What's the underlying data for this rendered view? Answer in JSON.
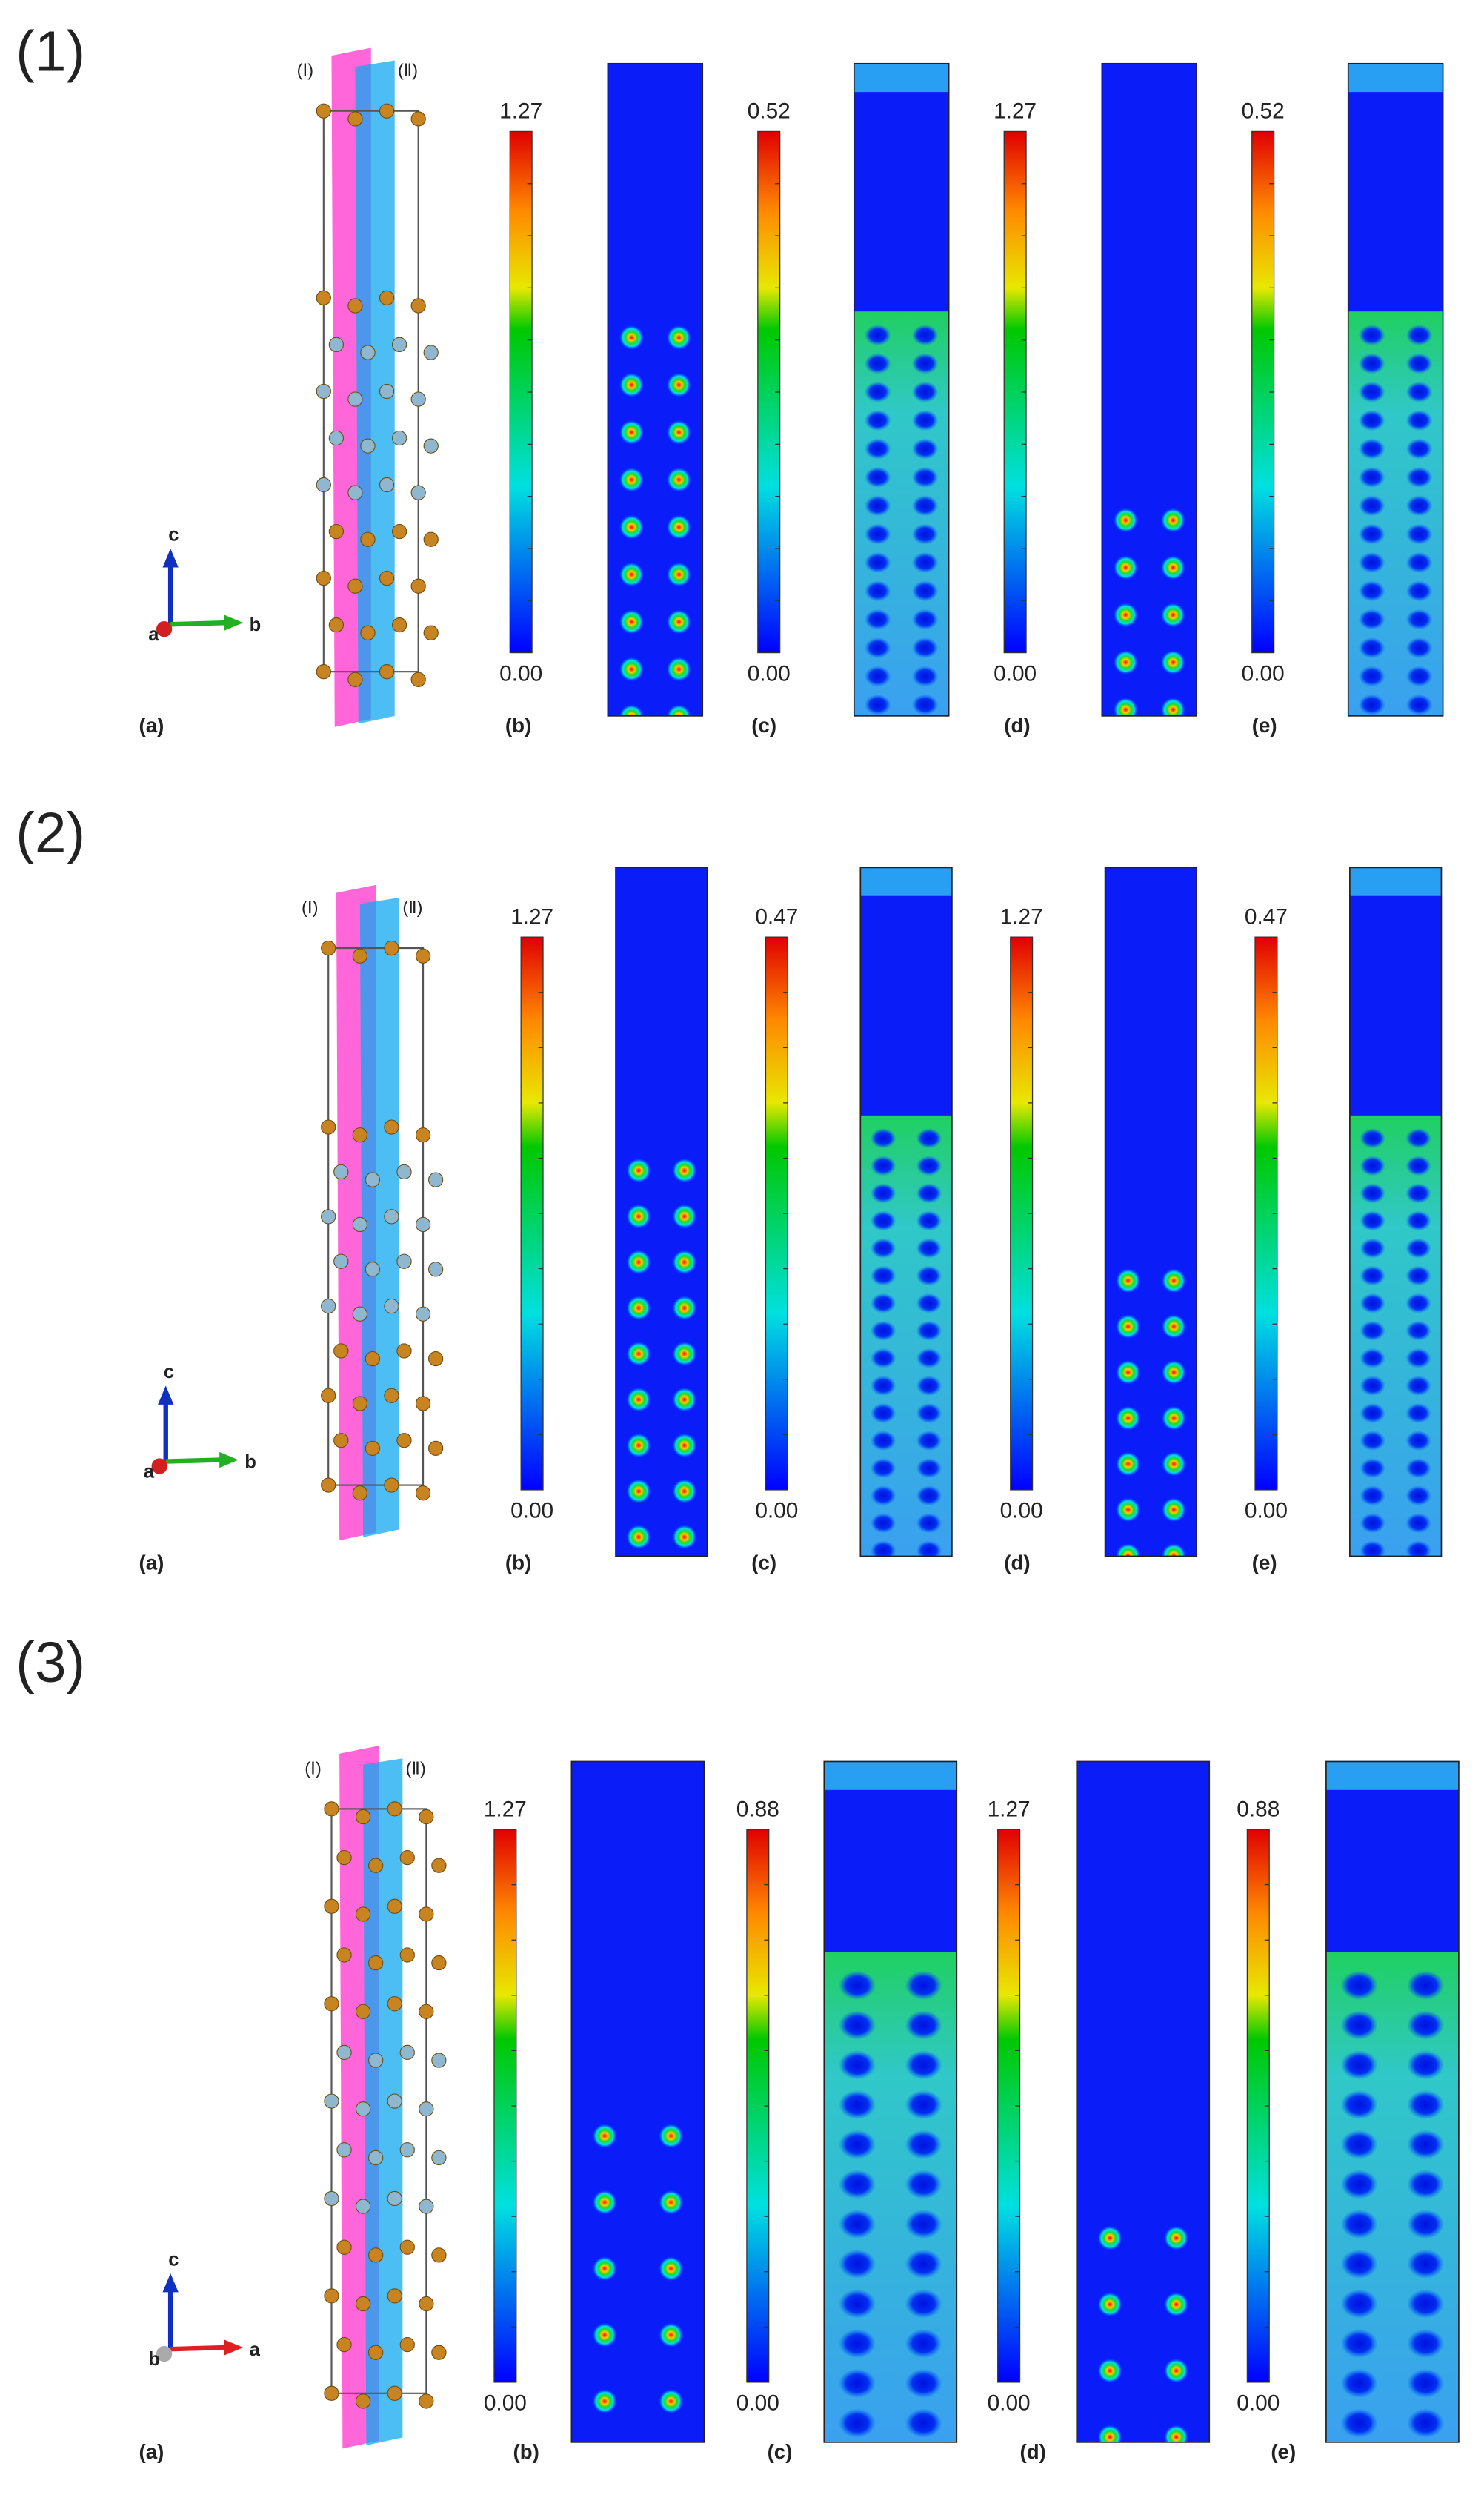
{
  "figure": {
    "rows": [
      {
        "label": "(1)",
        "planes": [
          "(Ⅰ)",
          "(Ⅱ)"
        ],
        "axes": {
          "up": "c",
          "side": "a",
          "right": "b"
        },
        "panel_labels": [
          "(a)",
          "(b)",
          "(c)",
          "(d)",
          "(e)"
        ],
        "colorbars": [
          {
            "max": "1.27",
            "min": "0.00"
          },
          {
            "max": "0.52",
            "min": "0.00"
          },
          {
            "max": "1.27",
            "min": "0.00"
          },
          {
            "max": "0.52",
            "min": "0.00"
          }
        ]
      },
      {
        "label": "(2)",
        "planes": [
          "(Ⅰ)",
          "(Ⅱ)"
        ],
        "axes": {
          "up": "c",
          "side": "a",
          "right": "b"
        },
        "panel_labels": [
          "(a)",
          "(b)",
          "(c)",
          "(d)",
          "(e)"
        ],
        "colorbars": [
          {
            "max": "1.27",
            "min": "0.00"
          },
          {
            "max": "0.47",
            "min": "0.00"
          },
          {
            "max": "1.27",
            "min": "0.00"
          },
          {
            "max": "0.47",
            "min": "0.00"
          }
        ]
      },
      {
        "label": "(3)",
        "planes": [
          "(Ⅰ)",
          "(Ⅱ)"
        ],
        "axes": {
          "up": "c",
          "side": "b",
          "right": "a"
        },
        "panel_labels": [
          "(a)",
          "(b)",
          "(c)",
          "(d)",
          "(e)"
        ],
        "colorbars": [
          {
            "max": "1.27",
            "min": "0.00"
          },
          {
            "max": "0.88",
            "min": "0.00"
          },
          {
            "max": "1.27",
            "min": "0.00"
          },
          {
            "max": "0.88",
            "min": "0.00"
          }
        ]
      }
    ]
  }
}
